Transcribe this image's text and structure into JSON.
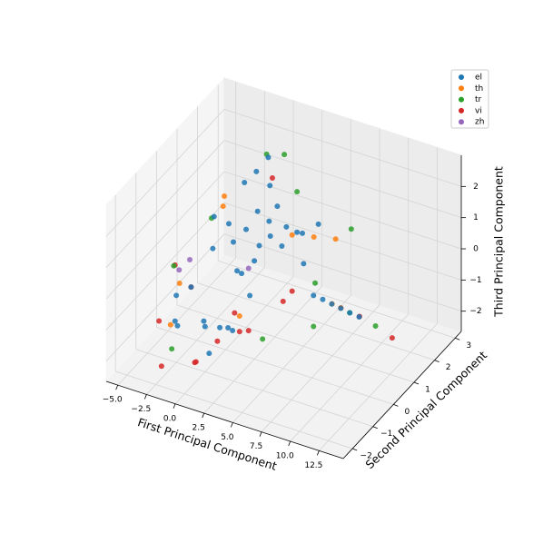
{
  "chart_data": {
    "type": "scatter3d",
    "x_label": "First Principal Component",
    "y_label": "Second Principal Component",
    "z_label": "Third Principal Component",
    "xlim": [
      -6,
      14.6
    ],
    "ylim": [
      -2.45,
      3.3
    ],
    "zlim": [
      -2.65,
      3.0
    ],
    "xticks": [
      {
        "value": -5,
        "label": "−5.0"
      },
      {
        "value": -2.5,
        "label": "−2.5"
      },
      {
        "value": 0,
        "label": "0.0"
      },
      {
        "value": 2.5,
        "label": "2.5"
      },
      {
        "value": 5,
        "label": "5.0"
      },
      {
        "value": 7.5,
        "label": "7.5"
      },
      {
        "value": 10,
        "label": "10.0"
      },
      {
        "value": 12.5,
        "label": "12.5"
      }
    ],
    "yticks": [
      {
        "value": -2,
        "label": "−2"
      },
      {
        "value": -1,
        "label": "−1"
      },
      0,
      1,
      2,
      3
    ],
    "zticks": [
      {
        "value": -2,
        "label": "−2"
      },
      {
        "value": -1,
        "label": "−1"
      },
      0,
      1,
      2
    ],
    "grid": true,
    "legend": "upper right",
    "series": [
      {
        "name": "el",
        "color": "#1f77b4",
        "x": [
          -3,
          -2,
          -1,
          0,
          1,
          2,
          3,
          4,
          5,
          -2.5,
          -1.5,
          -0.5,
          0.5,
          1.5,
          2.5,
          3.5,
          -3.5,
          -2,
          0,
          2,
          4,
          -1,
          1,
          3,
          0,
          0.5,
          -0.5,
          1,
          2,
          -1.5,
          0,
          1.5,
          3,
          4.5,
          9.5,
          10,
          10.5,
          11,
          11.5,
          12
        ],
        "y": [
          0,
          0.5,
          -0.5,
          1,
          0,
          -1,
          0.5,
          1.5,
          1,
          -1,
          1,
          0,
          0.5,
          -0.5,
          0,
          1,
          -0.5,
          1.5,
          -1,
          1,
          0.5,
          0,
          1,
          -0.5,
          1.5,
          1.8,
          1.2,
          1.6,
          1.4,
          -1.5,
          -0.8,
          0.8,
          1.8,
          2,
          -1.04,
          -0.87,
          -0.71,
          -0.55,
          -0.39,
          -0.22
        ],
        "z": [
          -1,
          0,
          -1.5,
          0.5,
          0,
          -1,
          1,
          0.5,
          0,
          -0.5,
          0.5,
          -2,
          -0.5,
          -1.5,
          0.5,
          1,
          -1.8,
          -0.5,
          -1.2,
          1,
          0.8,
          1.5,
          1.2,
          -0.2,
          2,
          2.3,
          1.8,
          1.6,
          1.2,
          -1,
          -2.2,
          0.3,
          0.2,
          0.5,
          0.97,
          0.78,
          0.58,
          0.39,
          0.19,
          0.0
        ]
      },
      {
        "name": "th",
        "color": "#ff7f0e",
        "x": [
          -4,
          -3,
          5,
          6,
          -2,
          3,
          10.5,
          11,
          -1,
          4
        ],
        "y": [
          0,
          -1,
          1.5,
          2,
          1,
          -1,
          -0.7,
          -0.55,
          0.5,
          1
        ],
        "z": [
          -1,
          -1.5,
          0.5,
          0.2,
          1,
          -0.5,
          0.58,
          0.4,
          1.8,
          0.8
        ]
      },
      {
        "name": "tr",
        "color": "#2ca02c",
        "x": [
          -4.5,
          -3,
          6,
          5,
          7,
          -2,
          0,
          3,
          11.5,
          12.5,
          8,
          1
        ],
        "y": [
          0,
          1,
          1,
          -1,
          2.2,
          -1.5,
          2,
          1.8,
          -0.4,
          0.3,
          -0.2,
          2.3
        ],
        "z": [
          -0.5,
          0.5,
          -0.5,
          -1,
          0.5,
          -1.8,
          2.2,
          1.5,
          0.2,
          -0.6,
          -0.8,
          2.1
        ]
      },
      {
        "name": "vi",
        "color": "#d62728",
        "x": [
          -4,
          -3,
          -2,
          -1,
          0,
          1,
          2,
          3,
          4,
          5,
          -3.5,
          0.5,
          11,
          12,
          13,
          2.5
        ],
        "y": [
          -1,
          0,
          -2,
          1,
          -1.5,
          -2,
          0,
          -1,
          1,
          0,
          -0.5,
          2,
          -0.55,
          -0.2,
          0.83,
          -1.8
        ],
        "z": [
          -1.5,
          -1,
          -2,
          -2.3,
          -2,
          -1.5,
          -1.8,
          -1,
          -1,
          -0.5,
          0,
          1.5,
          0.4,
          0.0,
          -1.3,
          -0.8
        ]
      },
      {
        "name": "zh",
        "color": "#9467bd",
        "x": [
          -4,
          -3.5,
          2
        ],
        "y": [
          0.5,
          -0.3,
          0
        ],
        "z": [
          -0.6,
          -0.3,
          0.2
        ]
      }
    ]
  }
}
